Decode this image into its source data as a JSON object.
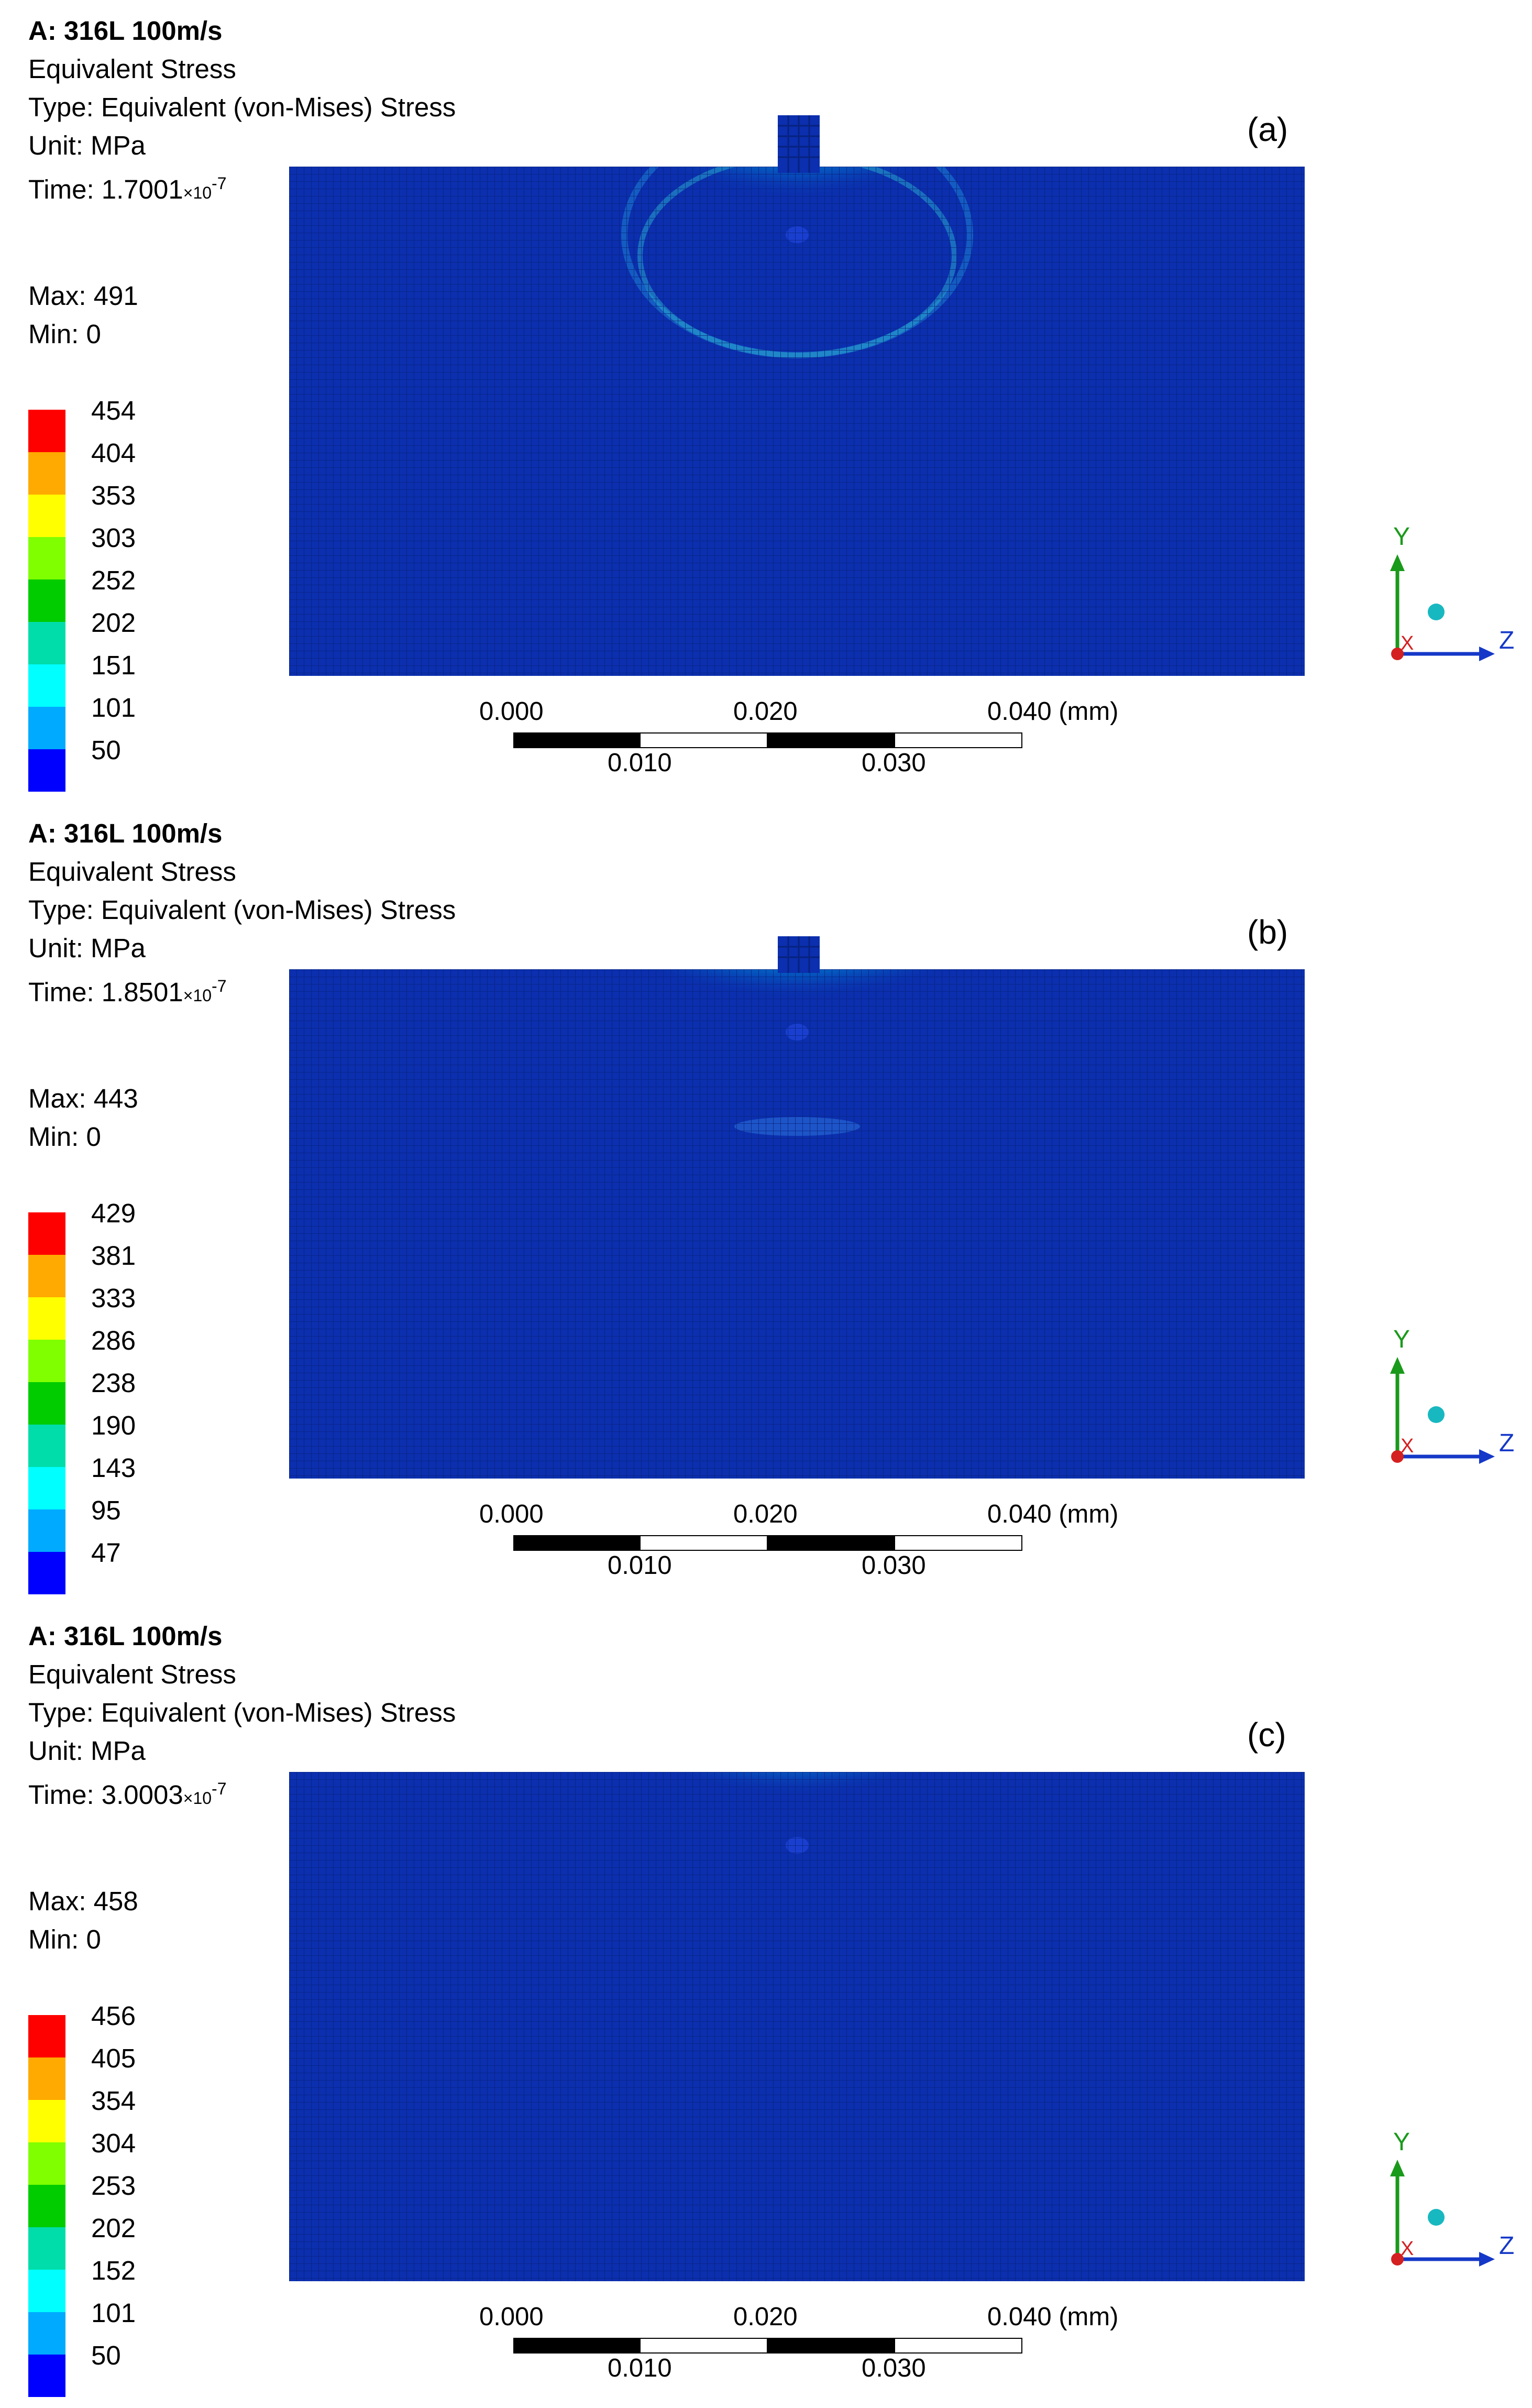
{
  "panels": [
    {
      "label": "(a)",
      "title": "A: 316L 100m/s",
      "result": "Equivalent Stress",
      "type": "Type: Equivalent (von-Mises) Stress",
      "unit": "Unit: MPa",
      "time_prefix": "Time: 1.7001",
      "time_mult": "×10",
      "time_exp": "-7",
      "max": "Max: 491",
      "min": "Min: 0",
      "legend": [
        "454",
        "404",
        "353",
        "303",
        "252",
        "202",
        "151",
        "101",
        "50"
      ]
    },
    {
      "label": "(b)",
      "title": "A: 316L 100m/s",
      "result": "Equivalent Stress",
      "type": "Type: Equivalent (von-Mises) Stress",
      "unit": "Unit: MPa",
      "time_prefix": "Time: 1.8501",
      "time_mult": "×10",
      "time_exp": "-7",
      "max": "Max: 443",
      "min": "Min: 0",
      "legend": [
        "429",
        "381",
        "333",
        "286",
        "238",
        "190",
        "143",
        "95",
        "47"
      ]
    },
    {
      "label": "(c)",
      "title": "A: 316L 100m/s",
      "result": "Equivalent Stress",
      "type": "Type: Equivalent (von-Mises) Stress",
      "unit": "Unit: MPa",
      "time_prefix": "Time: 3.0003",
      "time_mult": "×10",
      "time_exp": "-7",
      "max": "Max: 458",
      "min": "Min: 0",
      "legend": [
        "456",
        "405",
        "354",
        "304",
        "253",
        "202",
        "152",
        "101",
        "50"
      ]
    }
  ],
  "scale_bar": {
    "top_ticks": [
      "0.000",
      "0.020",
      "0.040 (mm)"
    ],
    "bottom_ticks": [
      "0.010",
      "0.030"
    ]
  },
  "triad": {
    "y": "Y",
    "z": "Z",
    "x": "X"
  },
  "colors": {
    "legend_band": [
      "#ff0000",
      "#ffaa00",
      "#ffff00",
      "#80ff00",
      "#00cc00",
      "#00ddaa",
      "#00ffff",
      "#00aaff",
      "#0000ff"
    ],
    "mesh_base": "#0b2fae"
  }
}
